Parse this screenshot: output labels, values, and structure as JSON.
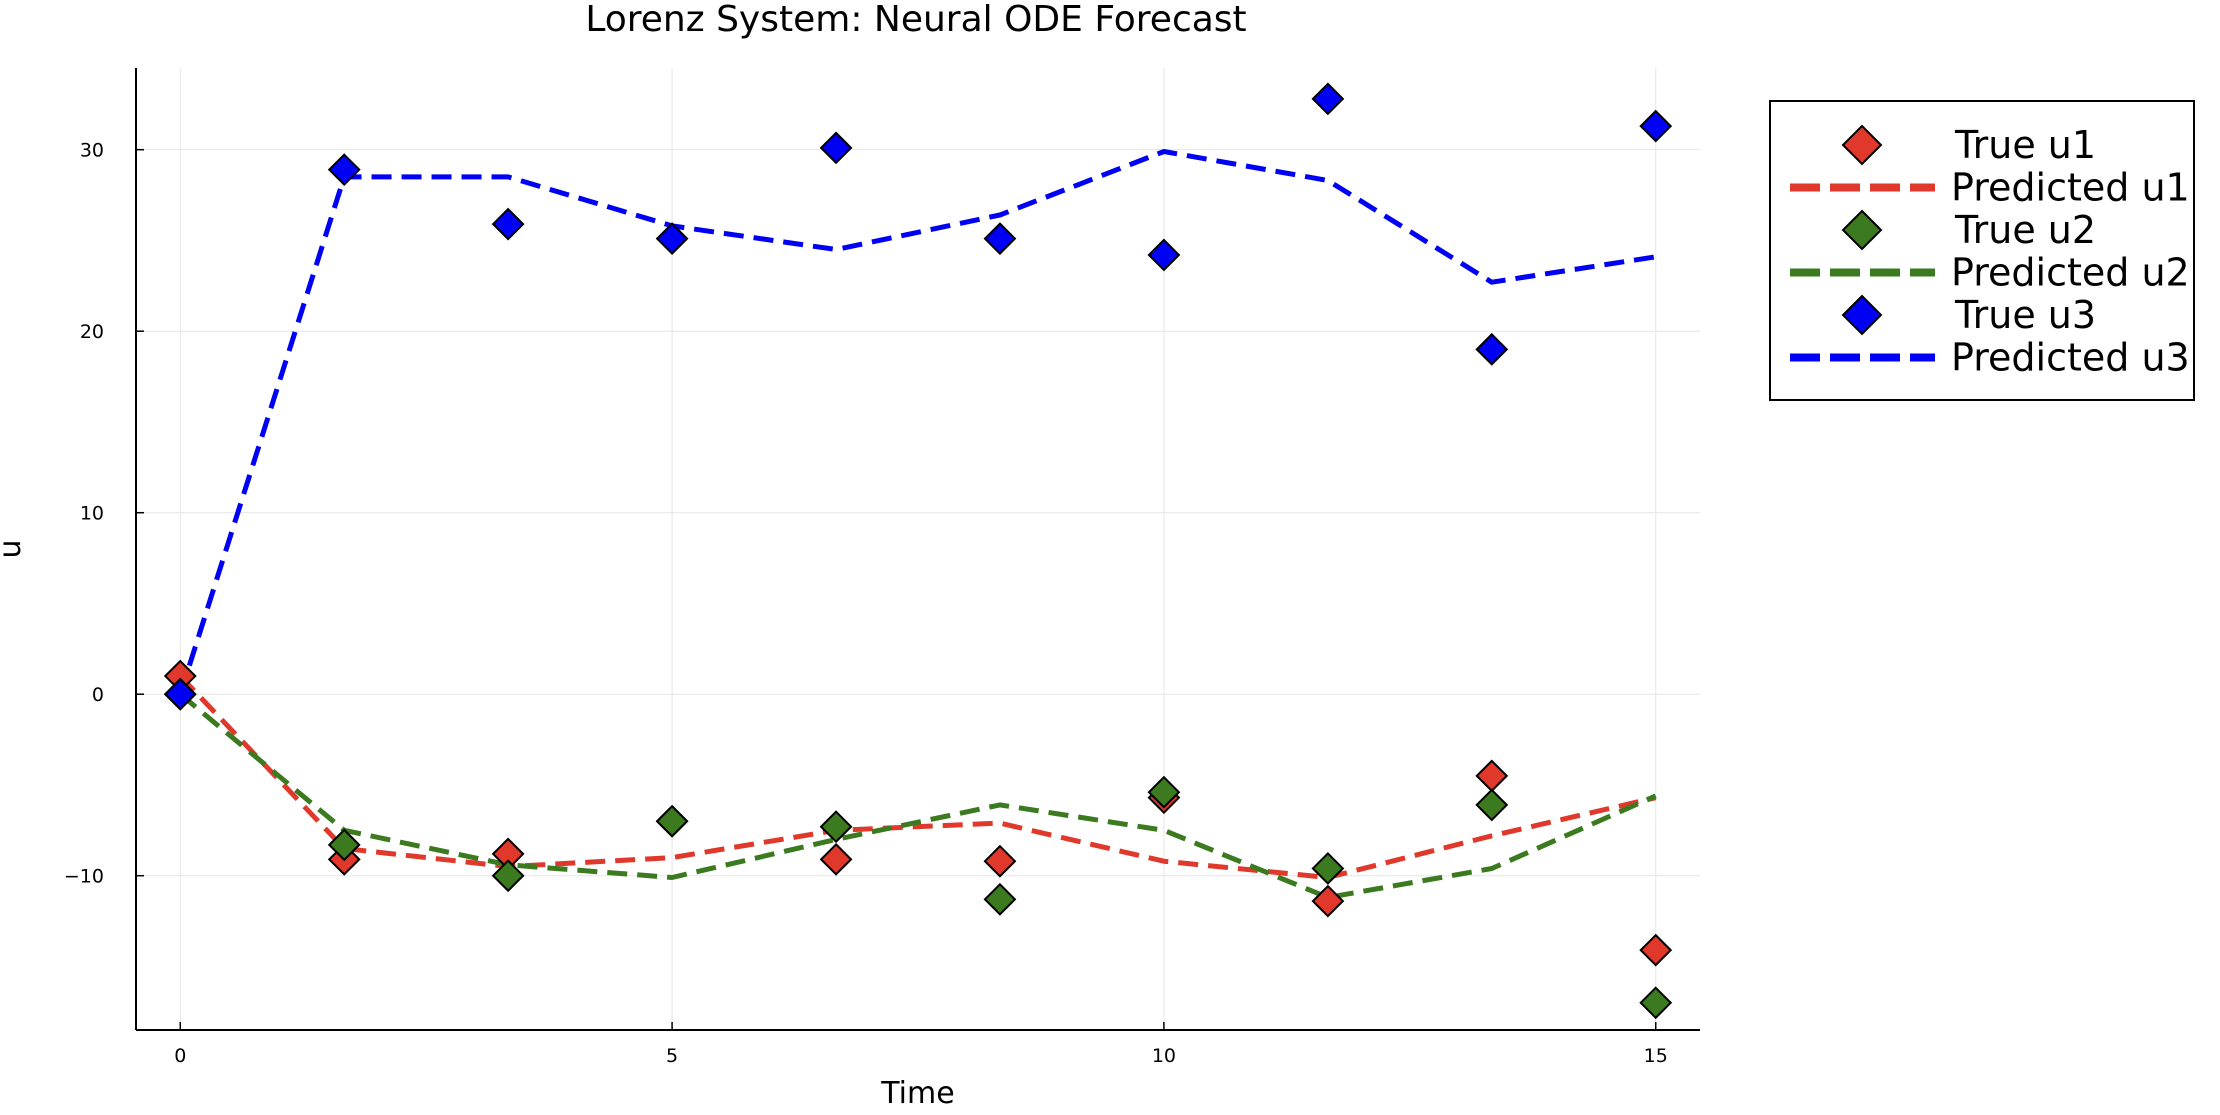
{
  "chart_data": {
    "type": "scatter",
    "title": "Lorenz System: Neural ODE Forecast",
    "xlabel": "Time",
    "ylabel": "u",
    "xlim": [
      -0.45,
      15.45
    ],
    "ylim": [
      -18.5,
      34.5
    ],
    "xticks": [
      0,
      5,
      10,
      15
    ],
    "xtick_labels": [
      "0",
      "5",
      "10",
      "15"
    ],
    "yticks": [
      -10,
      0,
      10,
      20,
      30
    ],
    "ytick_labels": [
      "−10",
      "0",
      "10",
      "20",
      "30"
    ],
    "grid": true,
    "legend_position": "outer-top-right",
    "x": [
      0,
      1.667,
      3.333,
      5,
      6.667,
      8.333,
      10,
      11.667,
      13.333,
      15
    ],
    "series": [
      {
        "name": "True u1",
        "kind": "scatter",
        "marker": "diamond",
        "color": "#e0382a",
        "values": [
          1.0,
          -9.1,
          -8.8,
          -7.0,
          -9.1,
          -9.2,
          -5.7,
          -11.4,
          -4.5,
          -14.1
        ]
      },
      {
        "name": "Predicted u1",
        "kind": "line",
        "dash": "dashed",
        "color": "#e0382a",
        "values": [
          1.0,
          -8.5,
          -9.5,
          -9.0,
          -7.5,
          -7.1,
          -9.2,
          -10.1,
          -7.8,
          -5.7
        ]
      },
      {
        "name": "True u2",
        "kind": "scatter",
        "marker": "diamond",
        "color": "#3b7a1f",
        "values": [
          0.0,
          -8.3,
          -10.0,
          -7.0,
          -7.3,
          -11.3,
          -5.4,
          -9.6,
          -6.1,
          -17.0
        ]
      },
      {
        "name": "Predicted u2",
        "kind": "line",
        "dash": "dashed",
        "color": "#3b7a1f",
        "values": [
          0.0,
          -7.5,
          -9.4,
          -10.1,
          -8.0,
          -6.1,
          -7.5,
          -11.2,
          -9.6,
          -5.6
        ]
      },
      {
        "name": "True u3",
        "kind": "scatter",
        "marker": "diamond",
        "color": "#0000f5",
        "values": [
          0.0,
          28.9,
          25.9,
          25.1,
          30.1,
          25.1,
          24.2,
          32.8,
          19.0,
          31.3
        ]
      },
      {
        "name": "Predicted u3",
        "kind": "line",
        "dash": "dashed",
        "color": "#0000f5",
        "values": [
          0.0,
          28.5,
          28.5,
          25.8,
          24.5,
          26.4,
          29.9,
          28.3,
          22.7,
          24.1
        ]
      }
    ]
  }
}
